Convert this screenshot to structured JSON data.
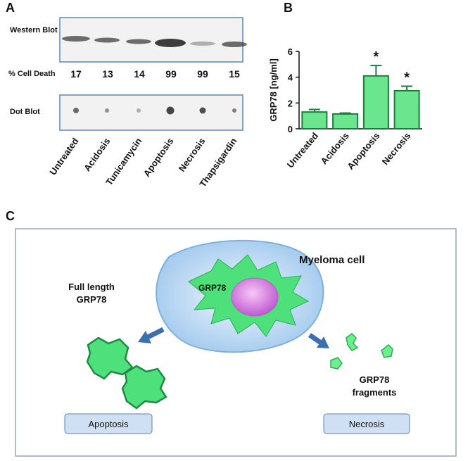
{
  "panel_a": {
    "label": "A",
    "western_blot": "Western Blot",
    "cell_death_label": "% Cell Death",
    "cell_death_values": [
      17,
      13,
      14,
      99,
      99,
      15
    ],
    "dot_blot": "Dot Blot",
    "lanes": [
      "Untreated",
      "Acidosis",
      "Tunicamycin",
      "Apoptosis",
      "Necrosis",
      "Thapsigardin"
    ]
  },
  "chart_data": {
    "type": "bar",
    "panel_label": "B",
    "y_label": "GRP78 [ng/ml]",
    "categories": [
      "Untreated",
      "Acidosis",
      "Apoptosis",
      "Necrosis"
    ],
    "values": [
      1.3,
      1.15,
      4.1,
      2.95
    ],
    "errors": [
      0.2,
      0.07,
      0.8,
      0.35
    ],
    "significance": [
      null,
      null,
      "*",
      "*"
    ],
    "color": "#6be68f",
    "ylim": [
      0,
      6
    ],
    "yticks": [
      0,
      2,
      4,
      6
    ]
  },
  "panel_c": {
    "label": "C",
    "cell": "Myeloma cell",
    "protein": "GRP78",
    "full_length": [
      "Full length",
      "GRP78"
    ],
    "fragments": [
      "GRP78",
      "fragments"
    ],
    "apoptosis": "Apoptosis",
    "necrosis": "Necrosis"
  }
}
